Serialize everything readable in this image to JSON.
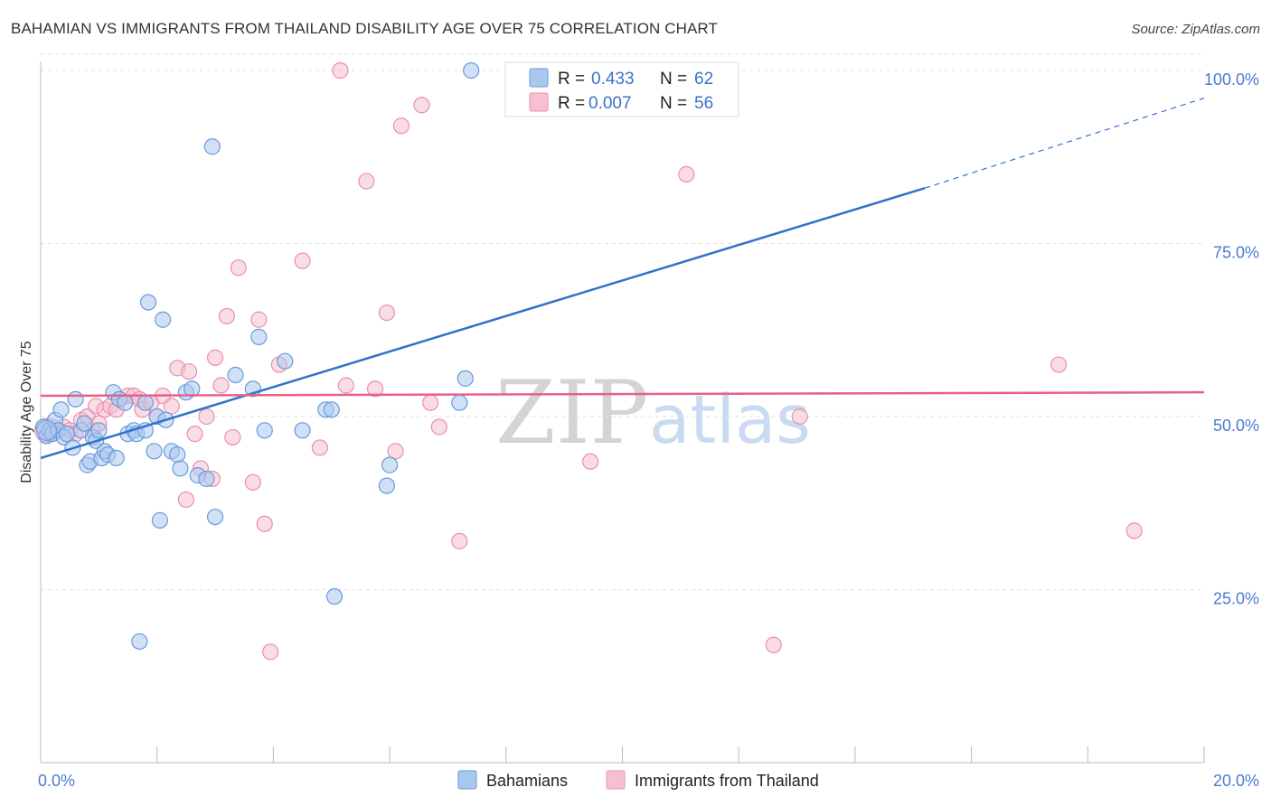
{
  "header": {
    "title": "BAHAMIAN VS IMMIGRANTS FROM THAILAND DISABILITY AGE OVER 75 CORRELATION CHART",
    "source": "Source: ZipAtlas.com"
  },
  "watermark": {
    "zip": "ZIP",
    "atlas": "atlas"
  },
  "legend": {
    "r_label": "R =",
    "n_label": "N =",
    "series": [
      {
        "name": "Bahamians",
        "r": "0.433",
        "n": "62"
      },
      {
        "name": "Immigrants from Thailand",
        "r": "0.007",
        "n": "56"
      }
    ]
  },
  "colors": {
    "blue_fill": "#a9c8f0",
    "blue_stroke": "#6a9ad8",
    "blue_line": "#2f72cc",
    "pink_fill": "#f6c0d0",
    "pink_stroke": "#e890ac",
    "pink_line": "#e8608a",
    "tick_text": "#4a7bd0"
  },
  "chart_data": {
    "type": "scatter",
    "title": "BAHAMIAN VS IMMIGRANTS FROM THAILAND DISABILITY AGE OVER 75 CORRELATION CHART",
    "xlabel": "",
    "ylabel": "Disability Age Over 75",
    "xlim": [
      0,
      20
    ],
    "ylim": [
      0,
      103
    ],
    "x_ticks": [
      {
        "value": 0,
        "label": "0.0%"
      },
      {
        "value": 20,
        "label": "20.0%"
      }
    ],
    "y_ticks": [
      {
        "value": 25,
        "label": "25.0%"
      },
      {
        "value": 50,
        "label": "50.0%"
      },
      {
        "value": 75,
        "label": "75.0%"
      },
      {
        "value": 100,
        "label": "100.0%"
      }
    ],
    "series": [
      {
        "name": "Bahamians",
        "r": 0.433,
        "n": 62,
        "trend": {
          "x0": 0,
          "y0": 44.0,
          "x1": 15.2,
          "y1": 83.0,
          "dash_to_x": 20,
          "dash_to_y": 96.0
        },
        "points": [
          [
            0.05,
            48.5
          ],
          [
            0.1,
            47.2
          ],
          [
            0.15,
            48.0
          ],
          [
            0.2,
            47.5
          ],
          [
            0.25,
            49.5
          ],
          [
            0.3,
            48.0
          ],
          [
            0.35,
            51.0
          ],
          [
            0.4,
            47.0
          ],
          [
            0.45,
            47.5
          ],
          [
            0.55,
            45.5
          ],
          [
            0.6,
            52.5
          ],
          [
            0.7,
            48.0
          ],
          [
            0.75,
            49.0
          ],
          [
            0.8,
            43.0
          ],
          [
            0.85,
            43.5
          ],
          [
            0.9,
            47.0
          ],
          [
            0.95,
            46.5
          ],
          [
            1.0,
            48.0
          ],
          [
            1.05,
            44.0
          ],
          [
            1.1,
            45.0
          ],
          [
            1.15,
            44.5
          ],
          [
            1.25,
            53.5
          ],
          [
            1.3,
            44.0
          ],
          [
            1.35,
            52.5
          ],
          [
            1.45,
            52.0
          ],
          [
            1.5,
            47.5
          ],
          [
            1.6,
            48.0
          ],
          [
            1.65,
            47.5
          ],
          [
            1.8,
            48.0
          ],
          [
            1.8,
            52.0
          ],
          [
            1.7,
            17.5
          ],
          [
            1.85,
            66.5
          ],
          [
            1.95,
            45.0
          ],
          [
            2.0,
            50.0
          ],
          [
            2.05,
            35.0
          ],
          [
            2.1,
            64.0
          ],
          [
            2.15,
            49.5
          ],
          [
            2.25,
            45.0
          ],
          [
            2.35,
            44.5
          ],
          [
            2.4,
            42.5
          ],
          [
            2.5,
            53.5
          ],
          [
            2.6,
            54.0
          ],
          [
            2.7,
            41.5
          ],
          [
            2.85,
            41.0
          ],
          [
            2.95,
            89.0
          ],
          [
            3.0,
            35.5
          ],
          [
            3.35,
            56.0
          ],
          [
            3.65,
            54.0
          ],
          [
            3.75,
            61.5
          ],
          [
            3.85,
            48.0
          ],
          [
            4.2,
            58.0
          ],
          [
            4.5,
            48.0
          ],
          [
            4.9,
            51.0
          ],
          [
            5.0,
            51.0
          ],
          [
            5.05,
            24.0
          ],
          [
            5.95,
            40.0
          ],
          [
            6.0,
            43.0
          ],
          [
            7.2,
            52.0
          ],
          [
            7.3,
            55.5
          ],
          [
            7.4,
            100.0
          ]
        ]
      },
      {
        "name": "Immigrants from Thailand",
        "r": 0.007,
        "n": 56,
        "trend": {
          "x0": 0,
          "y0": 53.0,
          "x1": 20,
          "y1": 53.5
        },
        "points": [
          [
            0.1,
            48.0
          ],
          [
            0.15,
            47.5
          ],
          [
            0.2,
            48.5
          ],
          [
            0.3,
            48.0
          ],
          [
            0.4,
            48.5
          ],
          [
            0.5,
            48.0
          ],
          [
            0.6,
            47.5
          ],
          [
            0.7,
            49.5
          ],
          [
            0.8,
            50.0
          ],
          [
            0.9,
            48.0
          ],
          [
            0.95,
            51.5
          ],
          [
            1.0,
            49.0
          ],
          [
            1.1,
            51.0
          ],
          [
            1.2,
            51.5
          ],
          [
            1.3,
            51.0
          ],
          [
            1.35,
            52.5
          ],
          [
            1.5,
            53.0
          ],
          [
            1.6,
            53.0
          ],
          [
            1.7,
            52.5
          ],
          [
            1.75,
            51.0
          ],
          [
            1.9,
            52.0
          ],
          [
            2.0,
            50.0
          ],
          [
            2.1,
            53.0
          ],
          [
            2.25,
            51.5
          ],
          [
            2.35,
            57.0
          ],
          [
            2.5,
            38.0
          ],
          [
            2.55,
            56.5
          ],
          [
            2.65,
            47.5
          ],
          [
            2.75,
            42.5
          ],
          [
            2.85,
            50.0
          ],
          [
            2.95,
            41.0
          ],
          [
            3.0,
            58.5
          ],
          [
            3.1,
            54.5
          ],
          [
            3.2,
            64.5
          ],
          [
            3.3,
            47.0
          ],
          [
            3.4,
            71.5
          ],
          [
            3.65,
            40.5
          ],
          [
            3.75,
            64.0
          ],
          [
            3.85,
            34.5
          ],
          [
            3.95,
            16.0
          ],
          [
            4.1,
            57.5
          ],
          [
            4.5,
            72.5
          ],
          [
            4.8,
            45.5
          ],
          [
            5.15,
            100.0
          ],
          [
            5.25,
            54.5
          ],
          [
            5.6,
            84.0
          ],
          [
            5.75,
            54.0
          ],
          [
            5.95,
            65.0
          ],
          [
            6.1,
            45.0
          ],
          [
            6.2,
            92.0
          ],
          [
            6.55,
            95.0
          ],
          [
            6.7,
            52.0
          ],
          [
            6.85,
            48.5
          ],
          [
            7.2,
            32.0
          ],
          [
            9.45,
            43.5
          ],
          [
            11.1,
            85.0
          ]
        ],
        "extra_points": [
          [
            12.6,
            17.0
          ],
          [
            13.05,
            50.0
          ],
          [
            17.5,
            57.5
          ],
          [
            18.8,
            33.5
          ]
        ]
      }
    ]
  }
}
